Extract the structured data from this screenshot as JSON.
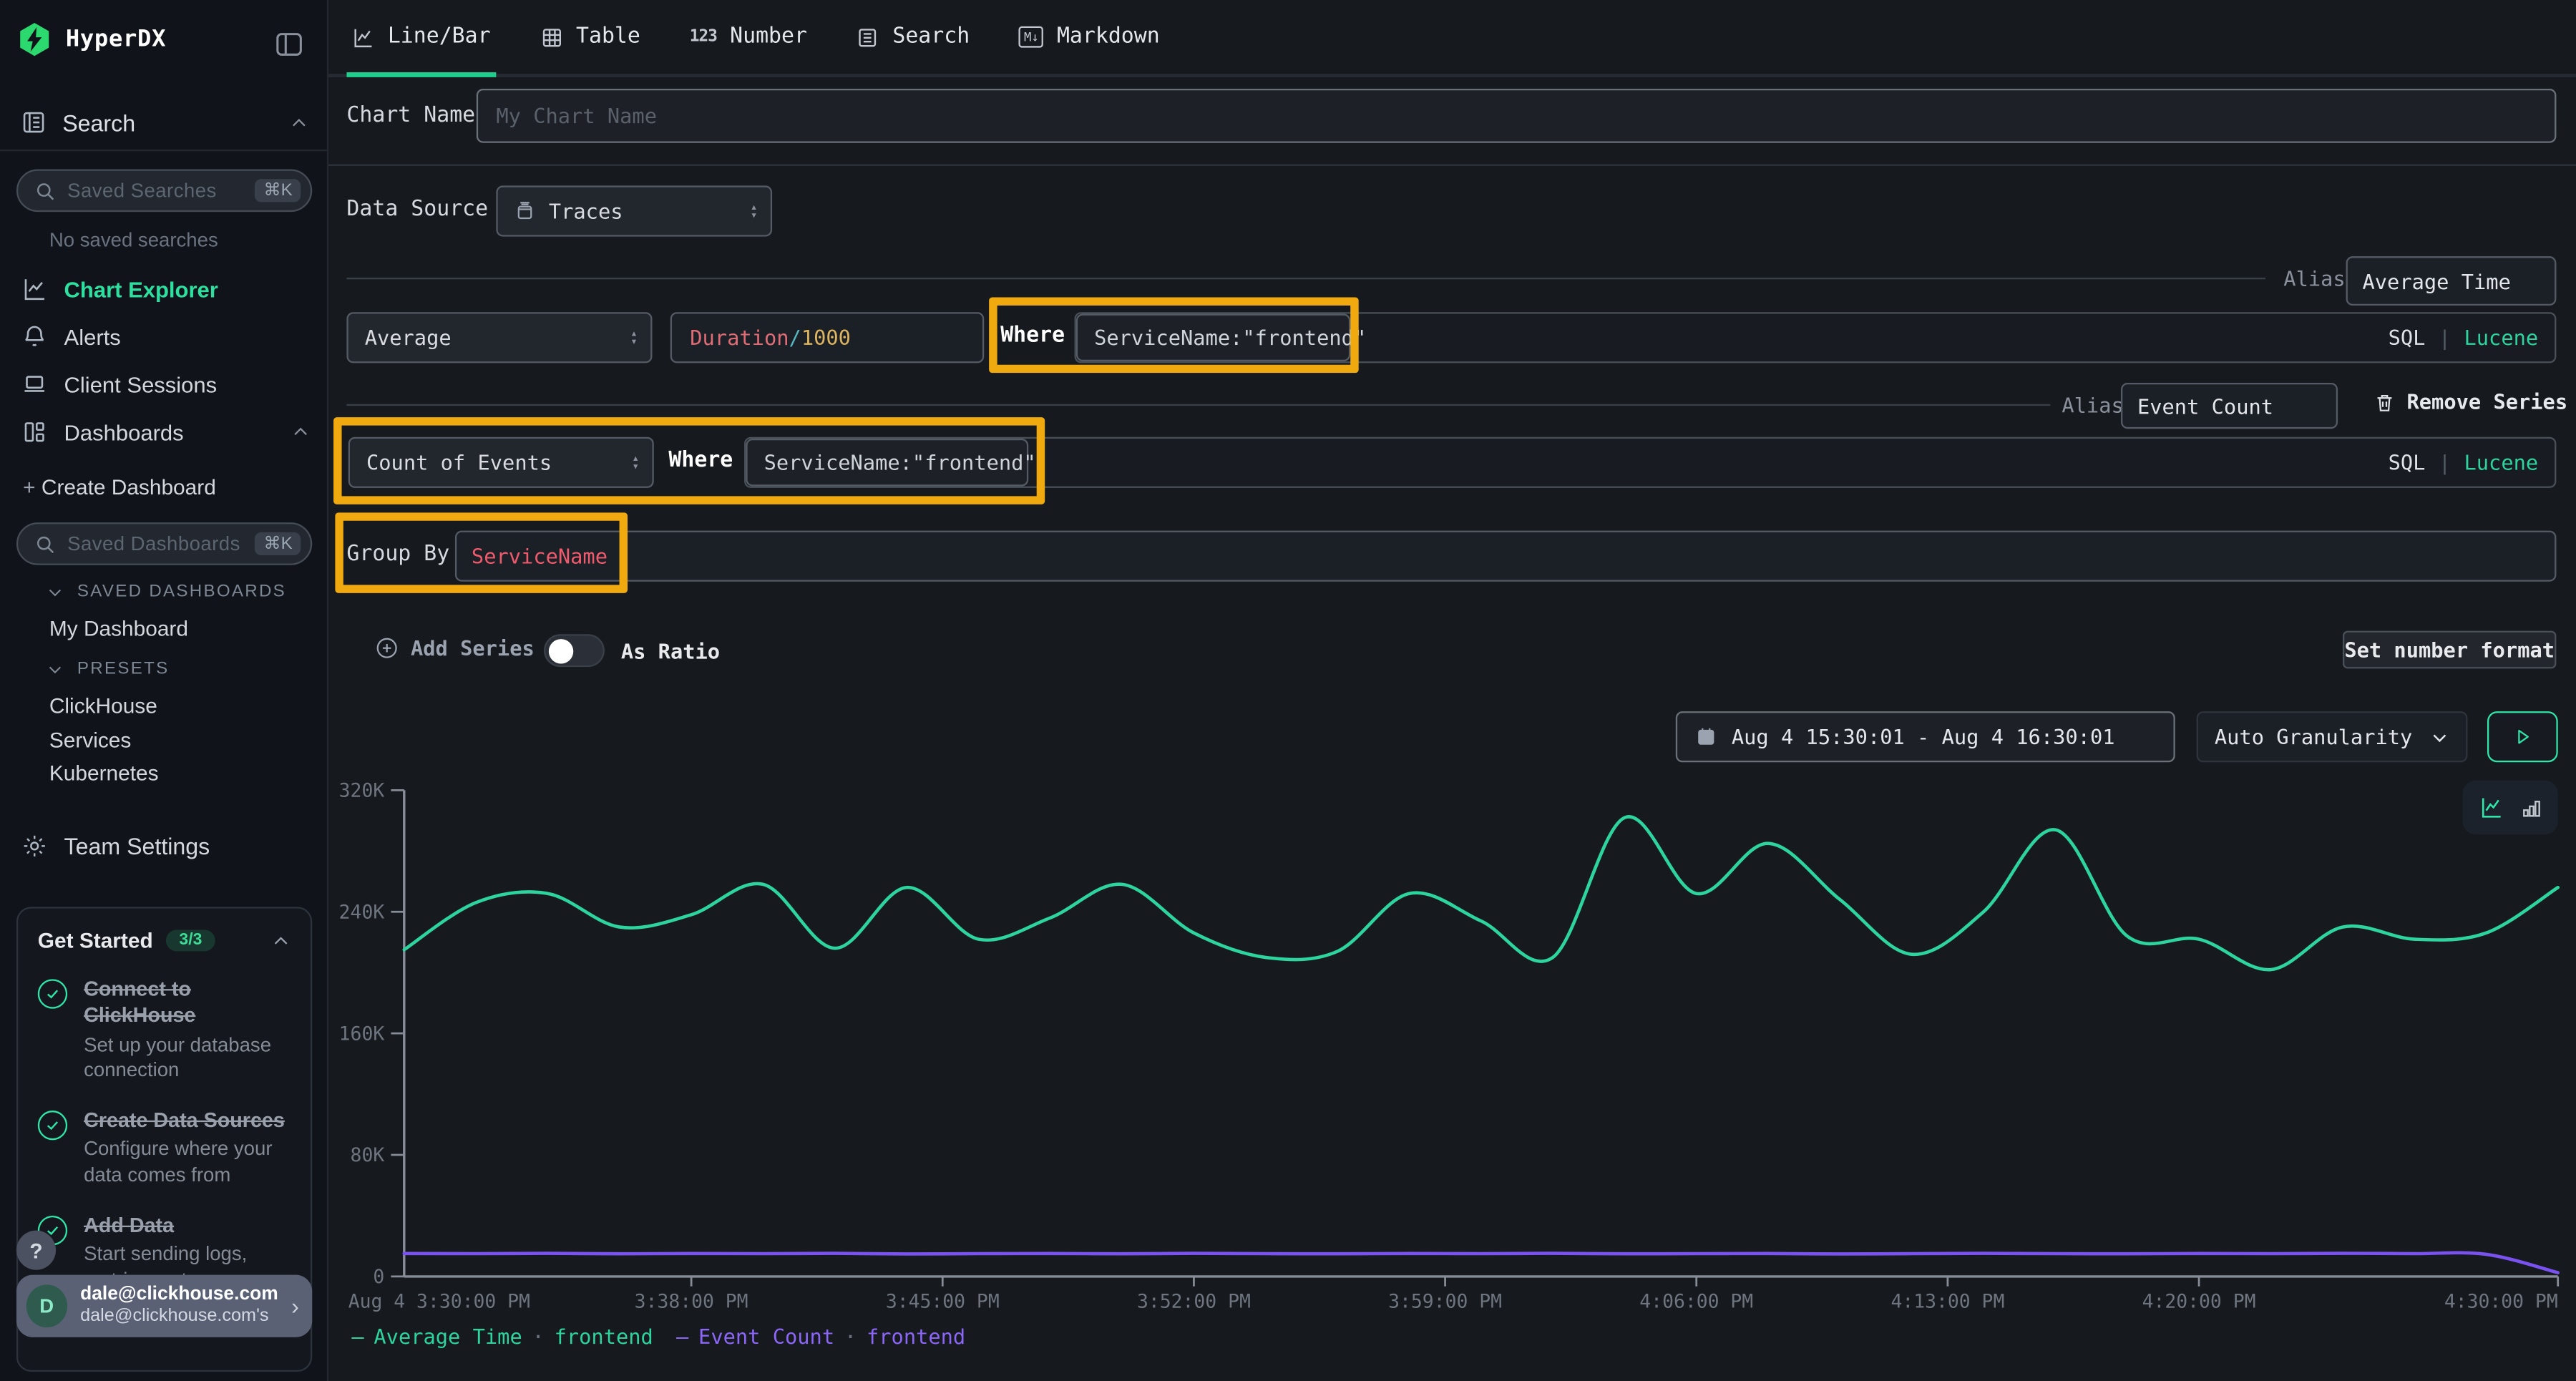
{
  "app": {
    "name": "HyperDX"
  },
  "glyphs": {
    "cmd_k": "⌘K",
    "number_tab": "123",
    "markdown_icon": "M↓",
    "question": "?",
    "avatar_d": "D",
    "plus": "+",
    "circle_plus": "⊕",
    "chevron_right": "›",
    "select_up": "▴",
    "select_down": "▾",
    "dash": "—",
    "dot": "·",
    "pipe": "|"
  },
  "sidebar": {
    "logo": "HyperDX",
    "search_label": "Search",
    "saved_searches_placeholder": "Saved Searches",
    "no_saved": "No saved searches",
    "nav": [
      {
        "label": "Chart Explorer"
      },
      {
        "label": "Alerts"
      },
      {
        "label": "Client Sessions"
      },
      {
        "label": "Dashboards"
      }
    ],
    "create_dashboard": "Create Dashboard",
    "saved_dashboards_placeholder": "Saved Dashboards",
    "saved_dashboards_header": "SAVED DASHBOARDS",
    "dashboards": [
      "My Dashboard"
    ],
    "presets_header": "PRESETS",
    "presets": [
      "ClickHouse",
      "Services",
      "Kubernetes"
    ],
    "team_settings": "Team Settings",
    "get_started": {
      "title": "Get Started",
      "progress": "3/3",
      "items": [
        {
          "title": "Connect to ClickHouse",
          "desc": "Set up your database connection"
        },
        {
          "title": "Create Data Sources",
          "desc": "Configure where your data comes from"
        },
        {
          "title": "Add Data",
          "desc": "Start sending logs, metrics, or traces"
        }
      ]
    },
    "user": {
      "email": "dale@clickhouse.com",
      "team": "dale@clickhouse.com's"
    }
  },
  "tabs": [
    {
      "label": "Line/Bar"
    },
    {
      "label": "Table"
    },
    {
      "label": "Number"
    },
    {
      "label": "Search"
    },
    {
      "label": "Markdown"
    }
  ],
  "form": {
    "chart_name_label": "Chart Name",
    "chart_name_placeholder": "My Chart Name",
    "data_source_label": "Data Source",
    "data_source_value": "Traces",
    "alias_label": "Alias",
    "series": [
      {
        "aggregation": "Average",
        "field_parts": [
          {
            "text": "Duration",
            "color": "#e06c75"
          },
          {
            "text": "/",
            "color": "#56b6c2"
          },
          {
            "text": "1000",
            "color": "#ddb45f"
          }
        ],
        "where_label": "Where",
        "where_value": "ServiceName:\"frontend\"",
        "alias": "Average Time",
        "sql_label": "SQL",
        "lucene_label": "Lucene"
      },
      {
        "aggregation": "Count of Events",
        "where_label": "Where",
        "where_value": "ServiceName:\"frontend\"",
        "alias": "Event Count",
        "remove_label": "Remove Series",
        "sql_label": "SQL",
        "lucene_label": "Lucene"
      }
    ],
    "group_by_label": "Group By",
    "group_by_value": "ServiceName",
    "group_by_color": "#ef5a6d",
    "add_series_label": "Add Series",
    "as_ratio_label": "As Ratio",
    "set_number_format_label": "Set number format"
  },
  "toolbar": {
    "date_range": "Aug 4 15:30:01 - Aug 4 16:30:01",
    "granularity": "Auto Granularity"
  },
  "chart_data": {
    "type": "line",
    "title": "",
    "xlabel": "",
    "ylabel": "",
    "ylim": [
      0,
      320
    ],
    "unit": "K",
    "grid": false,
    "legend_position": "bottom",
    "x_minutes": [
      0,
      2,
      4,
      6,
      8,
      10,
      12,
      14,
      16,
      18,
      20,
      22,
      24,
      26,
      28,
      30,
      32,
      34,
      36,
      38,
      40,
      42,
      44,
      46,
      48,
      50,
      52,
      54,
      56,
      58,
      60
    ],
    "series": [
      {
        "name": "Average Time",
        "group": "frontend",
        "color": "#2dd49e",
        "values_k": [
          215,
          246,
          252,
          230,
          238,
          258,
          216,
          256,
          222,
          236,
          258,
          226,
          210,
          214,
          252,
          234,
          210,
          302,
          252,
          285,
          248,
          212,
          240,
          294,
          224,
          222,
          202,
          230,
          222,
          226,
          256
        ]
      },
      {
        "name": "Event Count",
        "group": "frontend",
        "color": "#7a52f0",
        "values_k": [
          15.1,
          15.0,
          15.2,
          14.9,
          15.1,
          15.0,
          15.2,
          14.8,
          15.0,
          15.1,
          14.9,
          15.2,
          15.0,
          14.9,
          15.1,
          15.0,
          15.2,
          14.9,
          15.0,
          15.1,
          14.8,
          15.0,
          15.2,
          15.0,
          14.9,
          15.1,
          15.0,
          15.2,
          15.0,
          14.6,
          2.5
        ]
      }
    ],
    "y_ticks": [
      {
        "label": "320K",
        "value": 320
      },
      {
        "label": "240K",
        "value": 240
      },
      {
        "label": "160K",
        "value": 160
      },
      {
        "label": "80K",
        "value": 80
      },
      {
        "label": "0",
        "value": 0
      }
    ],
    "x_ticks": [
      {
        "label": "Aug 4 3:30:00 PM",
        "minute": 0
      },
      {
        "label": "3:38:00 PM",
        "minute": 8
      },
      {
        "label": "3:45:00 PM",
        "minute": 15
      },
      {
        "label": "3:52:00 PM",
        "minute": 22
      },
      {
        "label": "3:59:00 PM",
        "minute": 29
      },
      {
        "label": "4:06:00 PM",
        "minute": 36
      },
      {
        "label": "4:13:00 PM",
        "minute": 43
      },
      {
        "label": "4:20:00 PM",
        "minute": 50
      },
      {
        "label": "4:30:00 PM",
        "minute": 60
      }
    ]
  },
  "legend": [
    {
      "name": "Average Time",
      "group": "frontend",
      "color": "#2dd49e"
    },
    {
      "name": "Event Count",
      "group": "frontend",
      "color": "#7a52f0"
    }
  ]
}
